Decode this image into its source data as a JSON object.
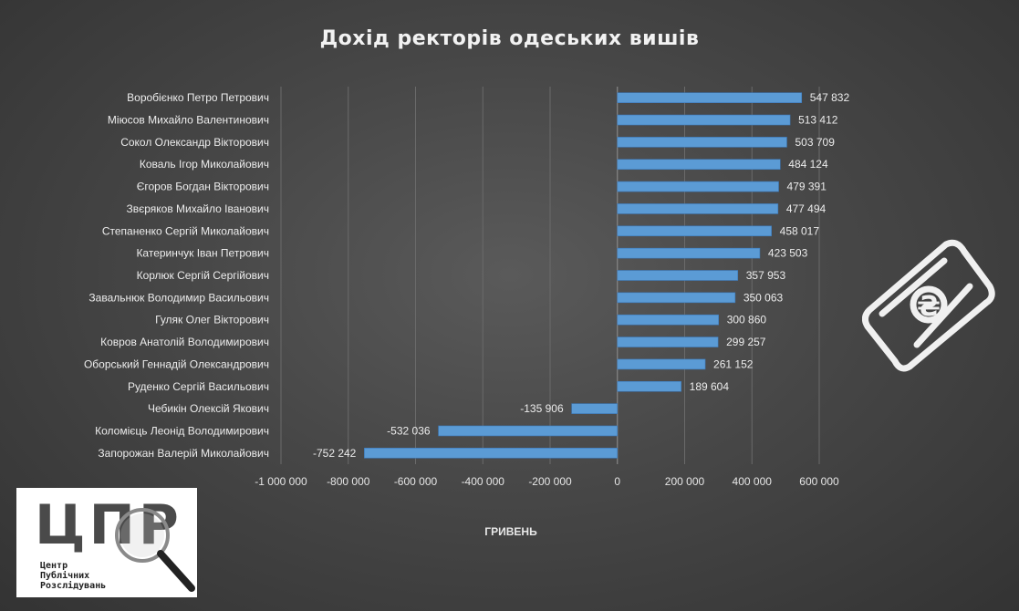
{
  "page": {
    "title": "Дохід ректорів одеських вишів"
  },
  "logo": {
    "letters": "ЦПР",
    "line1": "Центр",
    "line2": "Публічних",
    "line3": "Розслідувань",
    "icon": "magnifier-icon"
  },
  "decor": {
    "icon": "hryvnia-banknote-icon",
    "color": "#f0f0f0"
  },
  "chart_data": {
    "type": "bar",
    "orientation": "horizontal",
    "title": "Дохід ректорів одеських вишів",
    "xlabel": "ГРИВЕНЬ",
    "ylabel": "",
    "xlim": [
      -1000000,
      600000
    ],
    "xticks": [
      -1000000,
      -800000,
      -600000,
      -400000,
      -200000,
      0,
      200000,
      400000,
      600000
    ],
    "tick_labels": [
      "-1 000 000",
      "-800 000",
      "-600 000",
      "-400 000",
      "-200 000",
      "0",
      "200 000",
      "400 000",
      "600 000"
    ],
    "grid": true,
    "legend": "none",
    "bar_color": "#5b9bd5",
    "categories": [
      "Воробієнко Петро Петрович",
      "Міюсов Михайло Валентинович",
      "Сокол Олександр Вікторович",
      "Коваль Ігор Миколайович",
      "Єгоров Богдан Вікторович",
      "Звєряков Михайло Іванович",
      "Степаненко Сергій Миколайович",
      "Катеринчук Іван Петрович",
      "Корлюк Сергій Сергійович",
      "Завальнюк Володимир Васильович",
      "Гуляк Олег Вікторович",
      "Ковров Анатолій Володимирович",
      "Оборський Геннадій Олександрович",
      "Руденко Сергій Васильович",
      "Чебикін Олексій Якович",
      "Коломієць Леонід Володимирович",
      "Запорожан Валерій Миколайович"
    ],
    "values": [
      547832,
      513412,
      503709,
      484124,
      479391,
      477494,
      458017,
      423503,
      357953,
      350063,
      300860,
      299257,
      261152,
      189604,
      -135906,
      -532036,
      -752242
    ],
    "value_labels": [
      "547 832",
      "513 412",
      "503 709",
      "484 124",
      "479 391",
      "477 494",
      "458 017",
      "423 503",
      "357 953",
      "350 063",
      "300 860",
      "299 257",
      "261 152",
      "189 604",
      "-135 906",
      "-532 036",
      "-752 242"
    ]
  }
}
